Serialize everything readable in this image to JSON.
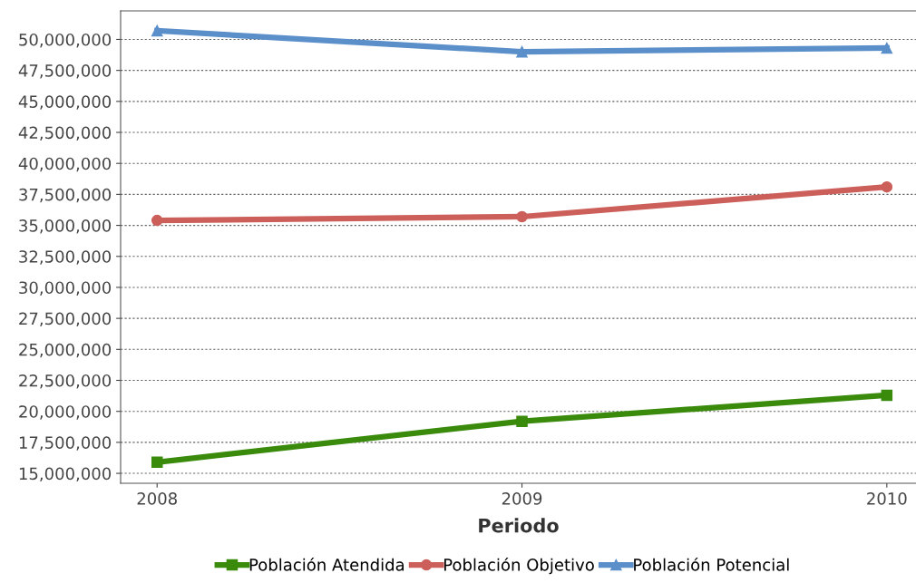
{
  "chart_data": {
    "type": "line",
    "xlabel": "Periodo",
    "categories": [
      "2008",
      "2009",
      "2010"
    ],
    "series": [
      {
        "name": "Población Atendida",
        "color": "#3a8a0c",
        "marker": "square",
        "values": [
          15900000,
          19200000,
          21300000
        ]
      },
      {
        "name": "Población Objetivo",
        "color": "#cc5f5a",
        "marker": "circle",
        "values": [
          35400000,
          35700000,
          38100000
        ]
      },
      {
        "name": "Población Potencial",
        "color": "#5b8fca",
        "marker": "triangle",
        "values": [
          50700000,
          49000000,
          49300000
        ]
      }
    ],
    "ylim": [
      14200000,
      52300000
    ],
    "yticks": [
      {
        "value": 15000000,
        "label": "15,000,000"
      },
      {
        "value": 17500000,
        "label": "17,500,000"
      },
      {
        "value": 20000000,
        "label": "20,000,000"
      },
      {
        "value": 22500000,
        "label": "22,500,000"
      },
      {
        "value": 25000000,
        "label": "25,000,000"
      },
      {
        "value": 27500000,
        "label": "27,500,000"
      },
      {
        "value": 30000000,
        "label": "30,000,000"
      },
      {
        "value": 32500000,
        "label": "32,500,000"
      },
      {
        "value": 35000000,
        "label": "35,000,000"
      },
      {
        "value": 37500000,
        "label": "37,500,000"
      },
      {
        "value": 40000000,
        "label": "40,000,000"
      },
      {
        "value": 42500000,
        "label": "42,500,000"
      },
      {
        "value": 45000000,
        "label": "45,000,000"
      },
      {
        "value": 47500000,
        "label": "47,500,000"
      },
      {
        "value": 50000000,
        "label": "50,000,000"
      }
    ],
    "grid": "y",
    "legend": "bottom",
    "line_style": "solid"
  }
}
